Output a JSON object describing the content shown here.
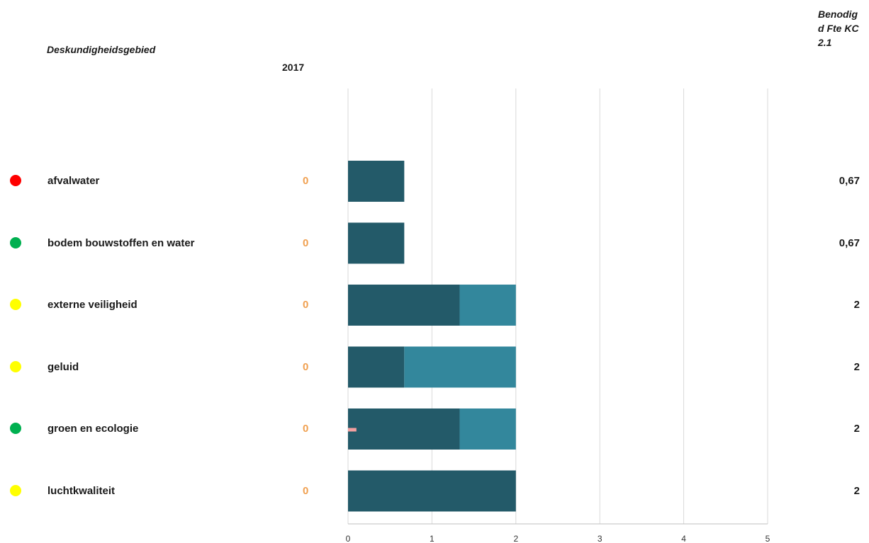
{
  "header": {
    "area_title": "Deskundigheidsgebied",
    "year": "2017",
    "fte_title": "Benodig\nd Fte KC\n2.1"
  },
  "rows": [
    {
      "label": "afvalwater",
      "status_color": "#ff0000",
      "count": "0",
      "fte": "0,67"
    },
    {
      "label": "bodem bouwstoffen en water",
      "status_color": "#00b050",
      "count": "0",
      "fte": "0,67"
    },
    {
      "label": "externe veiligheid",
      "status_color": "#ffff00",
      "count": "0",
      "fte": "2"
    },
    {
      "label": "geluid",
      "status_color": "#ffff00",
      "count": "0",
      "fte": "2"
    },
    {
      "label": "groen en ecologie",
      "status_color": "#00b050",
      "count": "0",
      "fte": "2"
    },
    {
      "label": "luchtkwaliteit",
      "status_color": "#ffff00",
      "count": "0",
      "fte": "2"
    }
  ],
  "chart_data": {
    "type": "bar",
    "orientation": "horizontal",
    "stacked": true,
    "categories": [
      "afvalwater",
      "bodem bouwstoffen en water",
      "externe veiligheid",
      "geluid",
      "groen en ecologie",
      "luchtkwaliteit"
    ],
    "series": [
      {
        "color": "#235a69",
        "values": [
          0.67,
          0.67,
          1.33,
          0.67,
          1.33,
          2.0
        ]
      },
      {
        "color": "#33879c",
        "values": [
          0,
          0,
          0.67,
          1.33,
          0.67,
          0
        ]
      }
    ],
    "marker": {
      "category": "groen en ecologie",
      "value": 0.1,
      "color": "#f4a0a0"
    },
    "xlim": [
      0,
      5
    ],
    "xticks": [
      "0",
      "1",
      "2",
      "3",
      "4",
      "5"
    ],
    "grid": true
  }
}
